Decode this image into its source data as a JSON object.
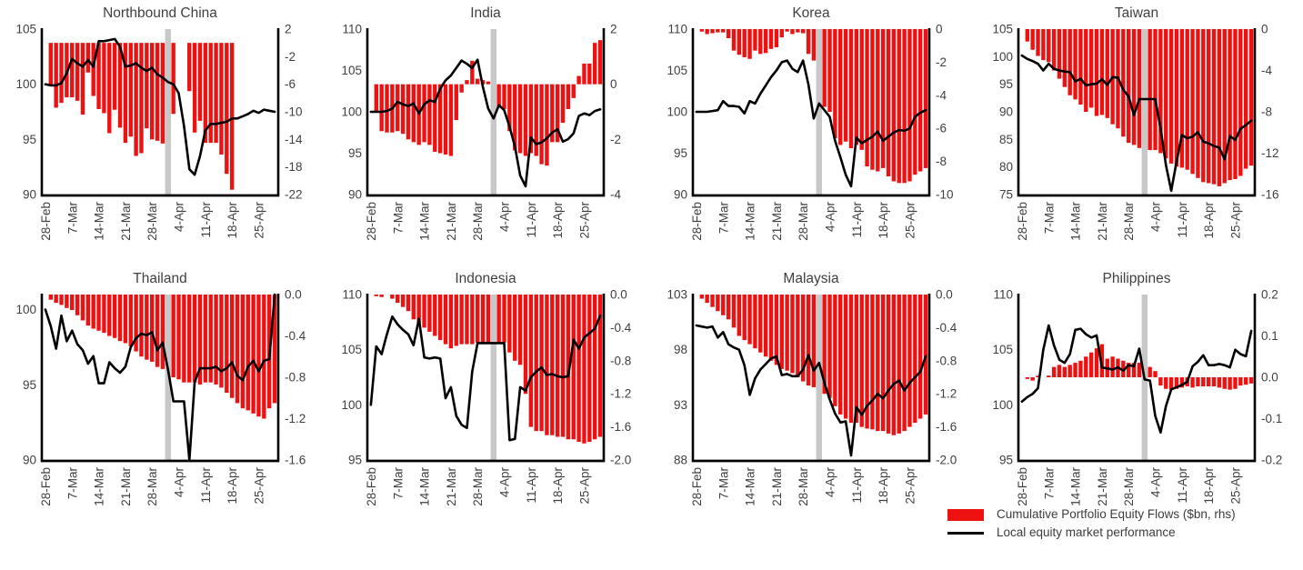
{
  "legend": {
    "flows_label": "Cumulative Portfolio Equity Flows ($bn, rhs)",
    "line_label": "Local equity market performance"
  },
  "colors": {
    "bar": "#ee1111",
    "line": "#000000",
    "band": "#c8c8c8",
    "text": "#404040"
  },
  "x_axis": {
    "labels": [
      "28-Feb",
      "7-Mar",
      "14-Mar",
      "21-Mar",
      "28-Mar",
      "4-Apr",
      "11-Apr",
      "18-Apr",
      "25-Apr"
    ],
    "indices": [
      0,
      5,
      10,
      15,
      20,
      25,
      30,
      35,
      40
    ]
  },
  "event_band": {
    "index": 23
  },
  "chart_data": [
    {
      "type": "bar+line",
      "title": "Northbound China",
      "left_axis": {
        "range": [
          90,
          105
        ],
        "ticks": [
          105,
          100,
          95,
          90
        ],
        "tick_labels": [
          "105",
          "100",
          "95",
          "90"
        ]
      },
      "right_axis": {
        "range": [
          -22,
          2
        ],
        "ticks": [
          2,
          -2,
          -6,
          -10,
          -14,
          -18,
          -22
        ],
        "tick_labels": [
          "2",
          "-2",
          "-6",
          "-10",
          "-14",
          "-18",
          "-22"
        ]
      },
      "line": [
        100.0,
        99.9,
        99.9,
        100.1,
        101.0,
        102.3,
        101.9,
        101.6,
        102.2,
        101.6,
        103.9,
        103.9,
        104.0,
        104.1,
        103.4,
        101.6,
        101.7,
        101.9,
        101.5,
        101.2,
        101.5,
        100.9,
        100.6,
        100.2,
        100.0,
        99.2,
        96.2,
        92.3,
        91.8,
        93.5,
        95.8,
        96.4,
        96.4,
        96.5,
        96.6,
        96.9,
        96.9,
        97.1,
        97.3,
        97.6,
        97.4,
        97.7,
        97.6,
        97.5
      ],
      "bars": [
        null,
        -6.3,
        -9.4,
        -8.7,
        -7.9,
        -7.9,
        -8.4,
        -10.4,
        -4.3,
        -7.7,
        -9.6,
        -10.2,
        -13.1,
        -9.7,
        -12.3,
        -14.5,
        -13.6,
        -16.4,
        -16.0,
        -12.4,
        -14.0,
        -14.2,
        -14.6,
        -14.7,
        -10.3,
        null,
        null,
        -7.0,
        -13.0,
        -11.3,
        -14.5,
        -14.5,
        -14.5,
        -16.2,
        -19.0,
        -21.3,
        null,
        null,
        null,
        null,
        null,
        null,
        null,
        null
      ]
    },
    {
      "type": "bar+line",
      "title": "India",
      "left_axis": {
        "range": [
          90,
          110
        ],
        "ticks": [
          110,
          105,
          100,
          95,
          90
        ],
        "tick_labels": [
          "110",
          "105",
          "100",
          "95",
          "90"
        ]
      },
      "right_axis": {
        "range": [
          -4,
          2
        ],
        "ticks": [
          2,
          0,
          -2,
          -4
        ],
        "tick_labels": [
          "2",
          "0",
          "-2",
          "-4"
        ]
      },
      "line": [
        100.0,
        100.0,
        100.0,
        100.1,
        100.4,
        101.2,
        100.9,
        100.7,
        101.0,
        99.8,
        100.9,
        101.4,
        101.2,
        102.8,
        103.8,
        104.4,
        105.3,
        106.2,
        105.8,
        105.3,
        106.3,
        103.0,
        100.4,
        99.2,
        100.8,
        100.2,
        98.2,
        95.8,
        92.3,
        91.0,
        96.9,
        96.1,
        96.3,
        96.8,
        97.5,
        97.9,
        96.4,
        96.7,
        97.4,
        99.5,
        99.8,
        99.6,
        100.1,
        100.3
      ],
      "bars": [
        null,
        -1.0,
        -1.7,
        -1.75,
        -1.75,
        -1.7,
        -1.8,
        -2.0,
        -2.1,
        -2.2,
        -2.1,
        -2.2,
        -2.45,
        -2.5,
        -2.55,
        -2.6,
        -1.3,
        -0.3,
        0.15,
        0.85,
        0.2,
        0.15,
        0.1,
        -0.2,
        -0.85,
        -0.9,
        -1.7,
        -2.4,
        -2.5,
        -2.6,
        -2.5,
        -2.6,
        -2.9,
        -2.95,
        -2.1,
        -2.1,
        -1.4,
        -0.9,
        -0.5,
        0.3,
        0.75,
        0.75,
        1.5,
        1.6
      ]
    },
    {
      "type": "bar+line",
      "title": "Korea",
      "left_axis": {
        "range": [
          90,
          110
        ],
        "ticks": [
          110,
          105,
          100,
          95,
          90
        ],
        "tick_labels": [
          "110",
          "105",
          "100",
          "95",
          "90"
        ]
      },
      "right_axis": {
        "range": [
          -10,
          0
        ],
        "ticks": [
          0,
          -2,
          -4,
          -6,
          -8,
          -10
        ],
        "tick_labels": [
          "0",
          "-2",
          "-4",
          "-6",
          "-8",
          "-10"
        ]
      },
      "line": [
        100.0,
        100.0,
        100.0,
        100.1,
        100.2,
        101.3,
        100.7,
        100.7,
        100.6,
        99.8,
        101.3,
        101.0,
        102.2,
        103.2,
        104.2,
        105.0,
        106.0,
        106.2,
        105.2,
        104.8,
        106.2,
        103.3,
        99.2,
        101.0,
        100.2,
        99.4,
        96.5,
        94.5,
        92.4,
        91.0,
        96.9,
        96.2,
        96.6,
        97.0,
        97.6,
        96.5,
        97.0,
        97.5,
        97.8,
        97.7,
        98.0,
        99.4,
        99.9,
        100.2
      ],
      "bars": [
        null,
        -0.15,
        -0.3,
        -0.25,
        -0.2,
        -0.2,
        -0.55,
        -1.3,
        -1.55,
        -1.7,
        -1.8,
        -1.3,
        -1.5,
        -1.45,
        -1.2,
        -1.1,
        -0.5,
        -0.15,
        -0.3,
        -0.2,
        -0.25,
        -1.5,
        -1.9,
        -3.3,
        -4.7,
        -5.0,
        -6.6,
        -7.0,
        -6.8,
        -7.2,
        -7.0,
        -7.3,
        -8.3,
        -8.5,
        -8.6,
        -8.4,
        -8.9,
        -9.2,
        -9.3,
        -9.3,
        -9.2,
        -8.8,
        -8.6,
        -8.4
      ]
    },
    {
      "type": "bar+line",
      "title": "Taiwan",
      "left_axis": {
        "range": [
          75,
          105
        ],
        "ticks": [
          105,
          100,
          95,
          90,
          85,
          80,
          75
        ],
        "tick_labels": [
          "105",
          "100",
          "95",
          "90",
          "85",
          "80",
          "75"
        ]
      },
      "right_axis": {
        "range": [
          -16,
          0
        ],
        "ticks": [
          0,
          -4,
          -8,
          -12,
          -16
        ],
        "tick_labels": [
          "0",
          "-4",
          "-8",
          "-12",
          "-16"
        ]
      },
      "line": [
        100.2,
        99.6,
        99.2,
        98.7,
        97.5,
        98.7,
        97.8,
        97.5,
        97.3,
        97.2,
        95.5,
        96.0,
        94.8,
        95.0,
        95.1,
        95.9,
        94.9,
        96.3,
        96.2,
        94.0,
        92.8,
        89.4,
        92.3,
        92.3,
        92.3,
        92.3,
        87.0,
        80.3,
        75.7,
        81.0,
        85.8,
        85.2,
        85.5,
        86.3,
        84.6,
        84.3,
        83.8,
        83.5,
        81.4,
        85.6,
        84.9,
        86.9,
        87.6,
        88.4
      ],
      "bars": [
        null,
        -1.2,
        -2.0,
        -2.6,
        -3.0,
        -3.2,
        -4.0,
        -4.8,
        -5.6,
        -6.4,
        -6.8,
        -7.3,
        -8.0,
        -7.6,
        -8.4,
        -8.3,
        -8.6,
        -9.2,
        -9.6,
        -10.4,
        -11.0,
        -11.2,
        -11.5,
        -11.7,
        -11.7,
        -11.7,
        -12.0,
        -12.5,
        -13.0,
        -13.3,
        -13.4,
        -13.6,
        -14.0,
        -14.4,
        -14.8,
        -14.9,
        -15.0,
        -15.2,
        -14.9,
        -14.6,
        -14.5,
        -14.2,
        -13.5,
        -13.2
      ]
    },
    {
      "type": "bar+line",
      "title": "Thailand",
      "left_axis": {
        "range": [
          90,
          101
        ],
        "ticks": [
          100,
          95,
          90
        ],
        "tick_labels": [
          "100",
          "95",
          "90"
        ]
      },
      "right_axis": {
        "range": [
          -1.6,
          0
        ],
        "ticks": [
          0,
          -0.4,
          -0.8,
          -1.2,
          -1.6
        ],
        "tick_labels": [
          "0.0",
          "-0.4",
          "-0.8",
          "-1.2",
          "-1.6"
        ]
      },
      "line": [
        100.0,
        98.9,
        97.4,
        99.6,
        97.9,
        98.6,
        97.7,
        97.3,
        96.4,
        96.9,
        95.1,
        95.1,
        96.5,
        96.1,
        95.8,
        96.2,
        97.5,
        98.1,
        98.4,
        98.3,
        98.5,
        97.3,
        97.8,
        96.0,
        93.9,
        93.9,
        93.9,
        90.0,
        95.2,
        96.1,
        96.1,
        96.1,
        96.2,
        95.9,
        96.1,
        96.5,
        95.6,
        95.3,
        96.2,
        96.6,
        95.9,
        96.6,
        96.7,
        101.0
      ],
      "bars": [
        null,
        -0.05,
        -0.08,
        -0.1,
        -0.13,
        -0.15,
        -0.2,
        -0.25,
        -0.3,
        -0.33,
        -0.35,
        -0.37,
        -0.4,
        -0.42,
        -0.45,
        -0.47,
        -0.5,
        -0.55,
        -0.6,
        -0.63,
        -0.65,
        -0.7,
        -0.72,
        -0.75,
        -0.8,
        -0.82,
        -0.85,
        -0.85,
        -0.85,
        -0.87,
        -0.85,
        -0.85,
        -0.87,
        -0.9,
        -0.95,
        -1.0,
        -1.05,
        -1.1,
        -1.12,
        -1.15,
        -1.18,
        -1.2,
        -1.1,
        -1.05
      ]
    },
    {
      "type": "bar+line",
      "title": "Indonesia",
      "left_axis": {
        "range": [
          95,
          110
        ],
        "ticks": [
          110,
          105,
          100,
          95
        ],
        "tick_labels": [
          "110",
          "105",
          "100",
          "95"
        ]
      },
      "right_axis": {
        "range": [
          -2,
          0
        ],
        "ticks": [
          0,
          -0.4,
          -0.8,
          -1.2,
          -1.6,
          -2
        ],
        "tick_labels": [
          "0.0",
          "-0.4",
          "-0.8",
          "-1.2",
          "-1.6",
          "-2.0"
        ]
      },
      "line": [
        100.0,
        105.3,
        104.6,
        106.4,
        108.0,
        107.3,
        106.8,
        106.4,
        105.4,
        107.8,
        104.3,
        104.2,
        104.3,
        104.2,
        100.6,
        101.6,
        99.0,
        98.2,
        97.9,
        103.0,
        105.6,
        105.6,
        105.6,
        105.6,
        105.6,
        105.6,
        96.8,
        96.9,
        101.6,
        101.3,
        102.5,
        103.0,
        103.4,
        102.7,
        102.8,
        102.6,
        102.5,
        102.6,
        105.9,
        105.1,
        106.1,
        106.5,
        106.9,
        108.1
      ],
      "bars": [
        null,
        -0.02,
        -0.03,
        null,
        -0.05,
        -0.1,
        -0.15,
        -0.2,
        -0.3,
        -0.35,
        -0.4,
        -0.45,
        -0.5,
        -0.55,
        -0.6,
        -0.65,
        -0.62,
        -0.6,
        -0.6,
        -0.6,
        -0.58,
        -0.58,
        -0.58,
        -0.58,
        -0.58,
        -0.58,
        -0.7,
        -0.8,
        -0.85,
        -1.2,
        -1.6,
        -1.65,
        -1.65,
        -1.7,
        -1.7,
        -1.72,
        -1.72,
        -1.75,
        -1.75,
        -1.78,
        -1.8,
        -1.78,
        -1.75,
        -1.72
      ]
    },
    {
      "type": "bar+line",
      "title": "Malaysia",
      "left_axis": {
        "range": [
          88,
          103
        ],
        "ticks": [
          103,
          98,
          93,
          88
        ],
        "tick_labels": [
          "103",
          "98",
          "93",
          "88"
        ]
      },
      "right_axis": {
        "range": [
          -2,
          0
        ],
        "ticks": [
          0,
          -0.4,
          -0.8,
          -1.2,
          -1.6,
          -2
        ],
        "tick_labels": [
          "0.0",
          "-0.4",
          "-0.8",
          "-1.2",
          "-1.6",
          "-2.0"
        ]
      },
      "line": [
        100.2,
        100.1,
        100.0,
        100.1,
        99.1,
        99.6,
        98.5,
        98.2,
        98.0,
        96.6,
        93.9,
        95.4,
        96.2,
        96.7,
        97.2,
        97.4,
        95.7,
        95.8,
        95.6,
        95.6,
        96.2,
        97.5,
        96.1,
        96.8,
        95.0,
        93.5,
        92.2,
        91.4,
        91.5,
        88.4,
        92.8,
        92.1,
        92.9,
        93.4,
        94.0,
        93.6,
        94.3,
        94.9,
        95.2,
        94.3,
        95.0,
        95.5,
        96.0,
        97.4
      ],
      "bars": [
        null,
        -0.05,
        -0.1,
        -0.15,
        -0.2,
        -0.25,
        -0.3,
        -0.4,
        -0.5,
        -0.55,
        -0.6,
        -0.65,
        -0.7,
        -0.75,
        -0.8,
        -0.85,
        -0.9,
        -0.92,
        -0.95,
        -1.0,
        -1.05,
        -1.1,
        -1.12,
        -1.15,
        -1.2,
        -1.25,
        -1.35,
        -1.45,
        -1.5,
        -1.55,
        -1.55,
        -1.6,
        -1.62,
        -1.63,
        -1.65,
        -1.65,
        -1.68,
        -1.7,
        -1.68,
        -1.65,
        -1.6,
        -1.55,
        -1.5,
        -1.45
      ]
    },
    {
      "type": "bar+line",
      "title": "Philippines",
      "left_axis": {
        "range": [
          95,
          110
        ],
        "ticks": [
          110,
          105,
          100,
          95
        ],
        "tick_labels": [
          "110",
          "105",
          "100",
          "95"
        ]
      },
      "right_axis": {
        "range": [
          -0.2,
          0.2
        ],
        "ticks": [
          0.2,
          0.1,
          0,
          -0.1,
          -0.2
        ],
        "tick_labels": [
          "0.2",
          "0.1",
          "0.0",
          "-0.1",
          "-0.2"
        ]
      },
      "line": [
        100.3,
        100.7,
        101.0,
        101.5,
        105.0,
        107.2,
        105.4,
        104.1,
        103.8,
        104.6,
        106.8,
        106.9,
        106.4,
        106.1,
        106.3,
        103.4,
        103.3,
        103.2,
        103.4,
        103.1,
        103.6,
        103.5,
        105.1,
        102.3,
        102.2,
        99.0,
        97.5,
        99.9,
        101.4,
        101.6,
        101.8,
        102.1,
        103.5,
        103.9,
        104.5,
        103.6,
        103.6,
        103.7,
        103.6,
        103.4,
        105.0,
        104.6,
        104.4,
        106.7
      ],
      "bars": [
        null,
        -0.004,
        -0.008,
        0.004,
        null,
        0.004,
        0.025,
        0.03,
        0.025,
        0.03,
        0.035,
        0.04,
        0.05,
        0.06,
        0.07,
        0.08,
        0.045,
        0.05,
        0.045,
        0.04,
        0.035,
        0.035,
        0.035,
        0.04,
        0.025,
        0.015,
        -0.02,
        -0.028,
        -0.03,
        -0.028,
        -0.025,
        -0.022,
        -0.025,
        -0.022,
        -0.022,
        -0.022,
        -0.022,
        -0.025,
        -0.028,
        -0.03,
        -0.028,
        -0.02,
        -0.018,
        -0.015
      ]
    }
  ]
}
